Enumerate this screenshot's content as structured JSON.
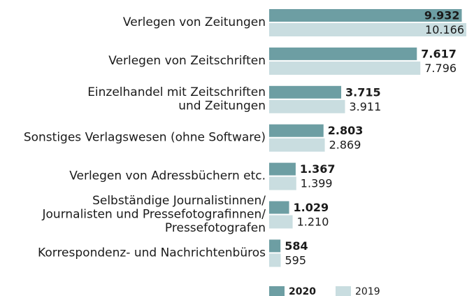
{
  "chart_data": {
    "type": "bar",
    "orientation": "horizontal",
    "categories": [
      [
        "Verlegen von Zeitungen"
      ],
      [
        "Verlegen von Zeitschriften"
      ],
      [
        "Einzelhandel mit Zeitschriften",
        "und Zeitungen"
      ],
      [
        "Sonstiges Verlagswesen (ohne Software)"
      ],
      [
        "Verlegen von Adressbüchern etc."
      ],
      [
        "Selbständige Journalistinnen/",
        "Journalisten und Pressefotografinnen/",
        "Pressefotografen"
      ],
      [
        "Korrespondenz- und Nachrichtenbüros"
      ]
    ],
    "series": [
      {
        "name": "2020",
        "color": "#6d9ea3",
        "values": [
          9932,
          7617,
          3715,
          2803,
          1367,
          1029,
          584
        ],
        "value_labels": [
          "9.932",
          "7.617",
          "3.715",
          "2.803",
          "1.367",
          "1.029",
          "584"
        ]
      },
      {
        "name": "2019",
        "color": "#c9dde0",
        "values": [
          10166,
          7796,
          3911,
          2869,
          1399,
          1210,
          595
        ],
        "value_labels": [
          "10.166",
          "7.796",
          "3.911",
          "2.869",
          "1.399",
          "1.210",
          "595"
        ]
      }
    ],
    "legend": "bottom"
  }
}
